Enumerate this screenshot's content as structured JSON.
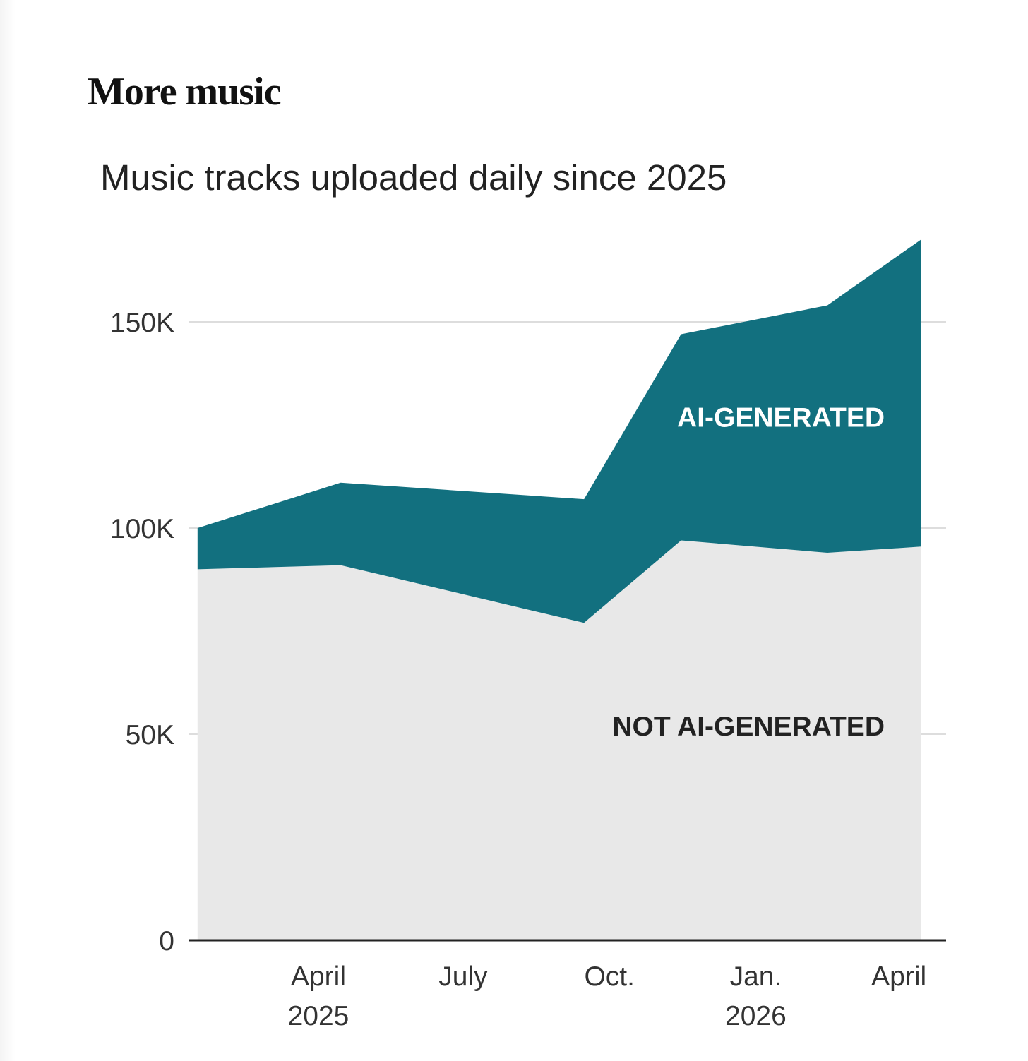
{
  "headline": "More music",
  "chart_data": {
    "type": "area",
    "stacked": true,
    "title": "Music tracks uploaded daily since 2025",
    "xlabel": "",
    "ylabel": "",
    "ylim": [
      0,
      170000
    ],
    "yticks": [
      0,
      50000,
      100000,
      150000
    ],
    "ytick_labels": [
      "0",
      "50K",
      "100K",
      "150K"
    ],
    "grid": true,
    "x_tick_labels": [
      {
        "line1": "April",
        "line2": "2025",
        "date": "2025-04-01"
      },
      {
        "line1": "July",
        "line2": "",
        "date": "2025-07-01"
      },
      {
        "line1": "Oct.",
        "line2": "",
        "date": "2025-10-01"
      },
      {
        "line1": "Jan.",
        "line2": "2026",
        "date": "2026-01-01"
      },
      {
        "line1": "April",
        "line2": "",
        "date": "2026-04-01"
      }
    ],
    "x": [
      "2025-01-15",
      "2025-04-15",
      "2025-09-15",
      "2025-11-15",
      "2026-02-15",
      "2026-04-15"
    ],
    "series": [
      {
        "name": "NOT AI-GENERATED",
        "color": "#e8e8e8",
        "label_color": "#222222",
        "values": [
          90000,
          91000,
          77000,
          97000,
          94000,
          95500
        ]
      },
      {
        "name": "AI-GENERATED",
        "color": "#12707f",
        "label_color": "#ffffff",
        "values": [
          10000,
          20000,
          30000,
          50000,
          60000,
          74500
        ]
      }
    ]
  }
}
